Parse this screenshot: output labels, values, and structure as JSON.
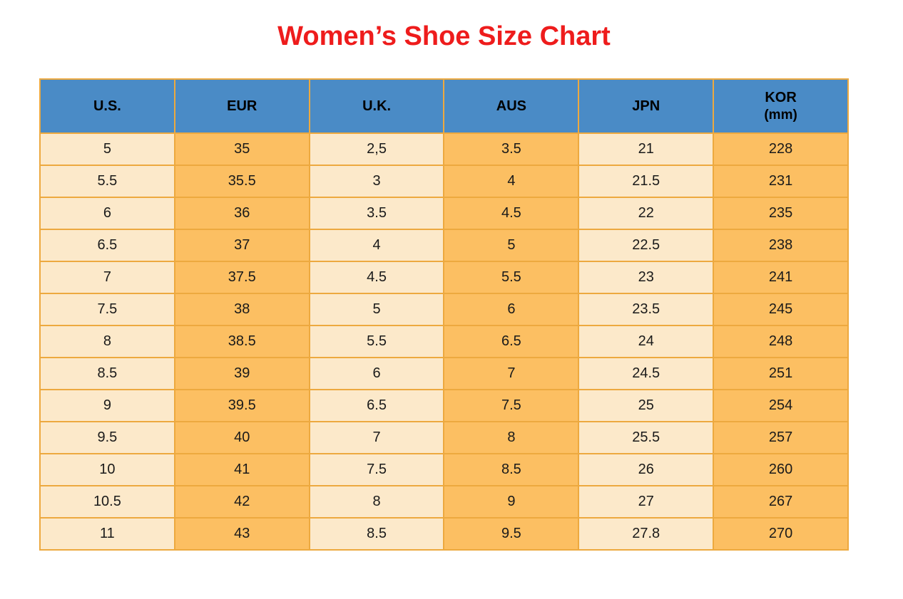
{
  "title": {
    "text": "Women’s Shoe Size Chart",
    "color": "#EE1C1C"
  },
  "table": {
    "columns": [
      {
        "key": "us",
        "label": "U.S.",
        "tone": "light"
      },
      {
        "key": "eur",
        "label": "EUR",
        "tone": "orange"
      },
      {
        "key": "uk",
        "label": "U.K.",
        "tone": "light"
      },
      {
        "key": "aus",
        "label": "AUS",
        "tone": "orange"
      },
      {
        "key": "jpn",
        "label": "JPN",
        "tone": "light"
      },
      {
        "key": "kor",
        "label": "KOR",
        "sublabel": "(mm)",
        "tone": "orange"
      }
    ],
    "rows": [
      [
        "5",
        "35",
        "2,5",
        "3.5",
        "21",
        "228"
      ],
      [
        "5.5",
        "35.5",
        "3",
        "4",
        "21.5",
        "231"
      ],
      [
        "6",
        "36",
        "3.5",
        "4.5",
        "22",
        "235"
      ],
      [
        "6.5",
        "37",
        "4",
        "5",
        "22.5",
        "238"
      ],
      [
        "7",
        "37.5",
        "4.5",
        "5.5",
        "23",
        "241"
      ],
      [
        "7.5",
        "38",
        "5",
        "6",
        "23.5",
        "245"
      ],
      [
        "8",
        "38.5",
        "5.5",
        "6.5",
        "24",
        "248"
      ],
      [
        "8.5",
        "39",
        "6",
        "7",
        "24.5",
        "251"
      ],
      [
        "9",
        "39.5",
        "6.5",
        "7.5",
        "25",
        "254"
      ],
      [
        "9.5",
        "40",
        "7",
        "8",
        "25.5",
        "257"
      ],
      [
        "10",
        "41",
        "7.5",
        "8.5",
        "26",
        "260"
      ],
      [
        "10.5",
        "42",
        "8",
        "9",
        "27",
        "267"
      ],
      [
        "11",
        "43",
        "8.5",
        "9.5",
        "27.8",
        "270"
      ]
    ],
    "colors": {
      "header_bg": "#4A8BC6",
      "cell_light": "#FCE9CA",
      "cell_orange": "#FCBF62",
      "border": "#EDA93F",
      "header_text": "#000000",
      "cell_text": "#1A1A1A"
    }
  },
  "chart_data": {
    "type": "table",
    "title": "Women’s Shoe Size Chart",
    "columns": [
      "U.S.",
      "EUR",
      "U.K.",
      "AUS",
      "JPN",
      "KOR (mm)"
    ],
    "rows": [
      [
        "5",
        "35",
        "2,5",
        "3.5",
        "21",
        "228"
      ],
      [
        "5.5",
        "35.5",
        "3",
        "4",
        "21.5",
        "231"
      ],
      [
        "6",
        "36",
        "3.5",
        "4.5",
        "22",
        "235"
      ],
      [
        "6.5",
        "37",
        "4",
        "5",
        "22.5",
        "238"
      ],
      [
        "7",
        "37.5",
        "4.5",
        "5.5",
        "23",
        "241"
      ],
      [
        "7.5",
        "38",
        "5",
        "6",
        "23.5",
        "245"
      ],
      [
        "8",
        "38.5",
        "5.5",
        "6.5",
        "24",
        "248"
      ],
      [
        "8.5",
        "39",
        "6",
        "7",
        "24.5",
        "251"
      ],
      [
        "9",
        "39.5",
        "6.5",
        "7.5",
        "25",
        "254"
      ],
      [
        "9.5",
        "40",
        "7",
        "8",
        "25.5",
        "257"
      ],
      [
        "10",
        "41",
        "7.5",
        "8.5",
        "26",
        "260"
      ],
      [
        "10.5",
        "42",
        "8",
        "9",
        "27",
        "267"
      ],
      [
        "11",
        "43",
        "8.5",
        "9.5",
        "27.8",
        "270"
      ]
    ]
  }
}
